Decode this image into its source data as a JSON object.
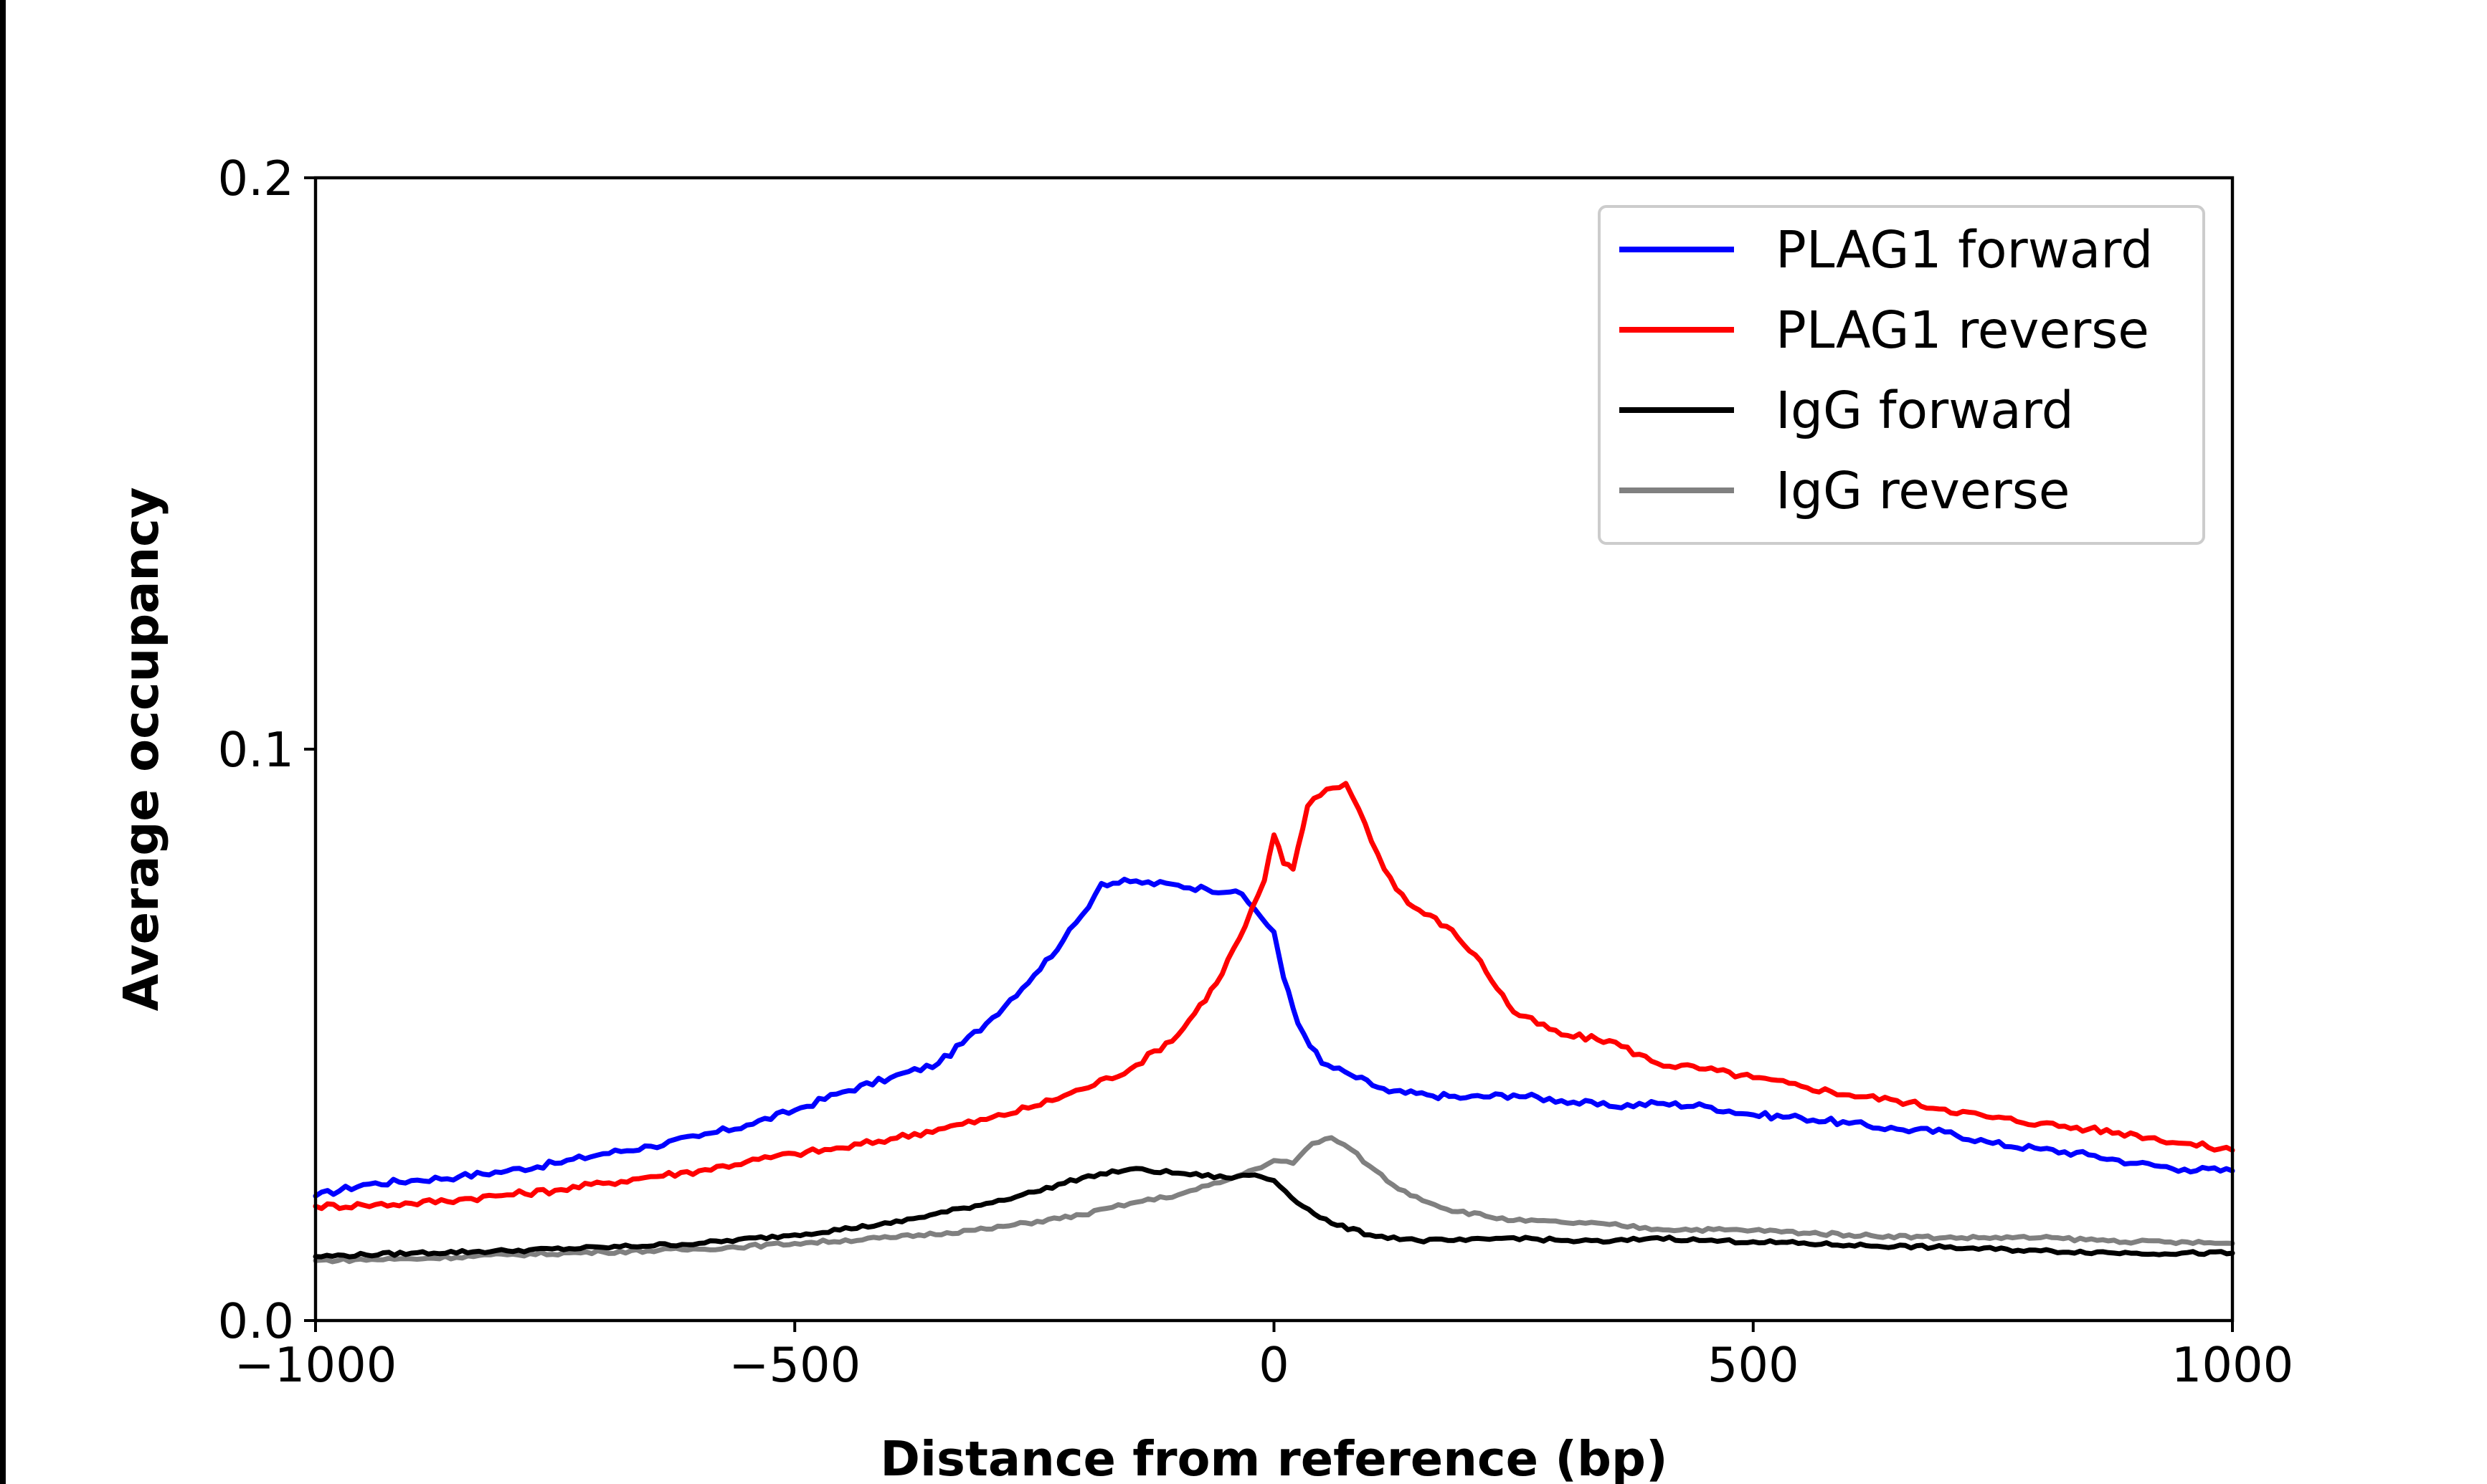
{
  "chart_data": {
    "type": "line",
    "title": "",
    "xlabel": "Distance from reference (bp)",
    "ylabel": "Average occupancy",
    "xlim": [
      -1000,
      1000
    ],
    "ylim": [
      0,
      0.2
    ],
    "xticks": [
      {
        "value": -1000,
        "label": "−1000"
      },
      {
        "value": -500,
        "label": "−500"
      },
      {
        "value": 0,
        "label": "0"
      },
      {
        "value": 500,
        "label": "500"
      },
      {
        "value": 1000,
        "label": "1000"
      }
    ],
    "yticks": [
      {
        "value": 0,
        "label": "0.0"
      },
      {
        "value": 0.1,
        "label": "0.1"
      },
      {
        "value": 0.2,
        "label": "0.2"
      }
    ],
    "grid": false,
    "legend_position": "top-right",
    "series": [
      {
        "name": "PLAG1 forward",
        "color": "#0000ff",
        "points": [
          [
            -1000,
            0.0218
          ],
          [
            -950,
            0.0238
          ],
          [
            -900,
            0.0245
          ],
          [
            -850,
            0.0252
          ],
          [
            -800,
            0.0262
          ],
          [
            -750,
            0.0275
          ],
          [
            -700,
            0.0292
          ],
          [
            -650,
            0.0305
          ],
          [
            -600,
            0.0322
          ],
          [
            -550,
            0.0342
          ],
          [
            -500,
            0.0368
          ],
          [
            -450,
            0.04
          ],
          [
            -400,
            0.0425
          ],
          [
            -350,
            0.045
          ],
          [
            -300,
            0.052
          ],
          [
            -250,
            0.0605
          ],
          [
            -220,
            0.0665
          ],
          [
            -200,
            0.071
          ],
          [
            -180,
            0.0765
          ],
          [
            -150,
            0.0768
          ],
          [
            -100,
            0.0762
          ],
          [
            -70,
            0.0755
          ],
          [
            -40,
            0.0752
          ],
          [
            -20,
            0.072
          ],
          [
            0,
            0.068
          ],
          [
            10,
            0.06
          ],
          [
            25,
            0.052
          ],
          [
            50,
            0.045
          ],
          [
            80,
            0.043
          ],
          [
            120,
            0.04
          ],
          [
            160,
            0.0395
          ],
          [
            200,
            0.039
          ],
          [
            250,
            0.0395
          ],
          [
            300,
            0.0385
          ],
          [
            350,
            0.0375
          ],
          [
            400,
            0.038
          ],
          [
            450,
            0.0375
          ],
          [
            500,
            0.036
          ],
          [
            550,
            0.0355
          ],
          [
            600,
            0.0345
          ],
          [
            650,
            0.0335
          ],
          [
            700,
            0.033
          ],
          [
            750,
            0.031
          ],
          [
            800,
            0.03
          ],
          [
            850,
            0.029
          ],
          [
            900,
            0.0275
          ],
          [
            950,
            0.0265
          ],
          [
            1000,
            0.0262
          ]
        ]
      },
      {
        "name": "PLAG1 reverse",
        "color": "#ff0000",
        "points": [
          [
            -1000,
            0.02
          ],
          [
            -950,
            0.0202
          ],
          [
            -900,
            0.0205
          ],
          [
            -850,
            0.0212
          ],
          [
            -800,
            0.022
          ],
          [
            -750,
            0.0228
          ],
          [
            -700,
            0.024
          ],
          [
            -650,
            0.0252
          ],
          [
            -600,
            0.0262
          ],
          [
            -550,
            0.0278
          ],
          [
            -500,
            0.0292
          ],
          [
            -450,
            0.0302
          ],
          [
            -400,
            0.0318
          ],
          [
            -350,
            0.0335
          ],
          [
            -300,
            0.0352
          ],
          [
            -250,
            0.0375
          ],
          [
            -200,
            0.0405
          ],
          [
            -150,
            0.044
          ],
          [
            -100,
            0.05
          ],
          [
            -60,
            0.059
          ],
          [
            -30,
            0.069
          ],
          [
            -10,
            0.077
          ],
          [
            0,
            0.085
          ],
          [
            10,
            0.08
          ],
          [
            20,
            0.079
          ],
          [
            35,
            0.09
          ],
          [
            55,
            0.093
          ],
          [
            75,
            0.094
          ],
          [
            95,
            0.087
          ],
          [
            115,
            0.079
          ],
          [
            140,
            0.073
          ],
          [
            180,
            0.069
          ],
          [
            210,
            0.064
          ],
          [
            250,
            0.054
          ],
          [
            300,
            0.05
          ],
          [
            350,
            0.049
          ],
          [
            400,
            0.045
          ],
          [
            450,
            0.044
          ],
          [
            500,
            0.0425
          ],
          [
            550,
            0.041
          ],
          [
            600,
            0.0395
          ],
          [
            650,
            0.0385
          ],
          [
            700,
            0.037
          ],
          [
            750,
            0.0355
          ],
          [
            800,
            0.0345
          ],
          [
            850,
            0.0335
          ],
          [
            900,
            0.0325
          ],
          [
            950,
            0.031
          ],
          [
            1000,
            0.0298
          ]
        ]
      },
      {
        "name": "IgG forward",
        "color": "#000000",
        "points": [
          [
            -1000,
            0.0112
          ],
          [
            -900,
            0.0118
          ],
          [
            -800,
            0.0122
          ],
          [
            -700,
            0.0128
          ],
          [
            -600,
            0.0135
          ],
          [
            -500,
            0.015
          ],
          [
            -400,
            0.017
          ],
          [
            -300,
            0.0205
          ],
          [
            -250,
            0.0225
          ],
          [
            -200,
            0.025
          ],
          [
            -150,
            0.0265
          ],
          [
            -100,
            0.0258
          ],
          [
            -50,
            0.025
          ],
          [
            -20,
            0.0255
          ],
          [
            0,
            0.0245
          ],
          [
            30,
            0.02
          ],
          [
            60,
            0.017
          ],
          [
            100,
            0.015
          ],
          [
            150,
            0.014
          ],
          [
            200,
            0.014
          ],
          [
            250,
            0.0145
          ],
          [
            300,
            0.014
          ],
          [
            350,
            0.0138
          ],
          [
            400,
            0.0145
          ],
          [
            450,
            0.014
          ],
          [
            500,
            0.0138
          ],
          [
            600,
            0.0132
          ],
          [
            700,
            0.0128
          ],
          [
            800,
            0.0122
          ],
          [
            900,
            0.0118
          ],
          [
            1000,
            0.0118
          ]
        ]
      },
      {
        "name": "IgG reverse",
        "color": "#808080",
        "points": [
          [
            -1000,
            0.0105
          ],
          [
            -900,
            0.0108
          ],
          [
            -800,
            0.0115
          ],
          [
            -700,
            0.012
          ],
          [
            -600,
            0.0125
          ],
          [
            -500,
            0.0135
          ],
          [
            -400,
            0.0145
          ],
          [
            -300,
            0.016
          ],
          [
            -200,
            0.0185
          ],
          [
            -150,
            0.0205
          ],
          [
            -100,
            0.022
          ],
          [
            -50,
            0.0245
          ],
          [
            -20,
            0.0265
          ],
          [
            0,
            0.028
          ],
          [
            20,
            0.0275
          ],
          [
            40,
            0.031
          ],
          [
            60,
            0.032
          ],
          [
            80,
            0.03
          ],
          [
            100,
            0.027
          ],
          [
            130,
            0.023
          ],
          [
            180,
            0.0195
          ],
          [
            250,
            0.0175
          ],
          [
            300,
            0.0172
          ],
          [
            350,
            0.0168
          ],
          [
            400,
            0.016
          ],
          [
            500,
            0.0158
          ],
          [
            600,
            0.015
          ],
          [
            700,
            0.0145
          ],
          [
            800,
            0.0145
          ],
          [
            900,
            0.0138
          ],
          [
            1000,
            0.0135
          ]
        ]
      }
    ]
  }
}
